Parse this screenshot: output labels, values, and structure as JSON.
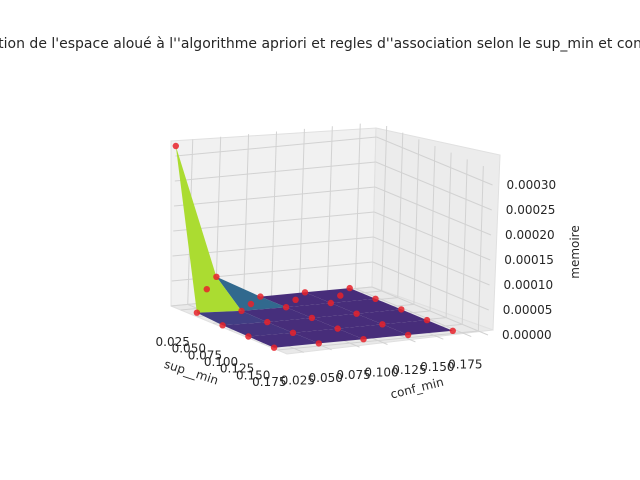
{
  "chart_data": {
    "type": "surface3d",
    "title": "Evolution de l'espace aloué à l''algorithme apriori et regles d''association selon le sup_min et conf_min",
    "xlabel": "sup__min",
    "ylabel": "conf_min",
    "zlabel": "memoire",
    "x_ticks": [
      "0.025",
      "0.050",
      "0.075",
      "0.100",
      "0.125",
      "0.150",
      "0.175"
    ],
    "y_ticks": [
      "0.025",
      "0.050",
      "0.075",
      "0.100",
      "0.125",
      "0.150",
      "0.175"
    ],
    "z_ticks": [
      "0.00000",
      "0.00005",
      "0.00010",
      "0.00015",
      "0.00020",
      "0.00025",
      "0.00030"
    ],
    "xlim": [
      0.01,
      0.19
    ],
    "ylim": [
      0.01,
      0.19
    ],
    "zlim": [
      0,
      0.00033
    ],
    "grid": true,
    "colormap": "viridis",
    "marker_color": "#e8222a",
    "x": [
      0.01,
      0.05,
      0.09,
      0.13,
      0.17
    ],
    "y": [
      0.01,
      0.05,
      0.09,
      0.13,
      0.17
    ],
    "z": [
      [
        0.00032,
        5e-05,
        2e-06,
        2e-06,
        2e-06
      ],
      [
        8e-06,
        3e-06,
        2e-06,
        2e-06,
        2e-06
      ],
      [
        4e-06,
        2e-06,
        2e-06,
        2e-06,
        2e-06
      ],
      [
        3e-06,
        2e-06,
        2e-06,
        2e-06,
        2e-06
      ],
      [
        2e-06,
        2e-06,
        2e-06,
        2e-06,
        2e-06
      ]
    ],
    "x_points": [
      0.01,
      0.01,
      0.01,
      0.01,
      0.01,
      0.05,
      0.09,
      0.13,
      0.17,
      0.17,
      0.17,
      0.17,
      0.17,
      0.05,
      0.09,
      0.13,
      0.05,
      0.09,
      0.13,
      0.05,
      0.09,
      0.13,
      0.05,
      0.09,
      0.13,
      0.03,
      0.03,
      0.03,
      0.03
    ],
    "y_points": [
      0.01,
      0.05,
      0.09,
      0.13,
      0.17,
      0.01,
      0.01,
      0.01,
      0.01,
      0.05,
      0.09,
      0.13,
      0.17,
      0.05,
      0.05,
      0.05,
      0.09,
      0.09,
      0.09,
      0.13,
      0.13,
      0.13,
      0.17,
      0.17,
      0.17,
      0.03,
      0.07,
      0.11,
      0.15
    ],
    "z_points": [
      0.00032,
      5e-05,
      2e-06,
      2e-06,
      2e-06,
      8e-06,
      4e-06,
      3e-06,
      2e-06,
      2e-06,
      2e-06,
      2e-06,
      2e-06,
      3e-06,
      2e-06,
      2e-06,
      2e-06,
      2e-06,
      2e-06,
      2e-06,
      2e-06,
      2e-06,
      2e-06,
      2e-06,
      2e-06,
      4e-05,
      2e-06,
      2e-06,
      2e-06
    ]
  }
}
